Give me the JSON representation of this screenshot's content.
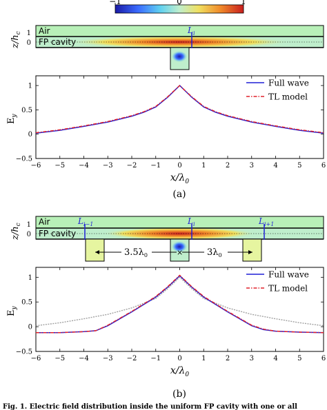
{
  "colorbar": {
    "ticks": [
      "−1",
      "0",
      "1"
    ],
    "colors": [
      "#1a1aa6",
      "#3b6cff",
      "#5fd0f0",
      "#bfeecc",
      "#f0e060",
      "#f08a2a",
      "#c81e1e"
    ]
  },
  "panel_a": {
    "geometry_labels": {
      "air": "Air",
      "cavity": "FP cavity",
      "line_label": "L",
      "line_sub": "i",
      "ylabel": "z/h",
      "ylabel_sub": "c",
      "ytick_top": "1",
      "ytick_mid": "0"
    },
    "caption": "(a)"
  },
  "panel_b": {
    "geometry_labels": {
      "air": "Air",
      "cavity": "FP cavity",
      "line_left": "L",
      "line_left_sub": "i−1",
      "line_mid": "L",
      "line_mid_sub": "i",
      "line_right": "L",
      "line_right_sub": "i+1",
      "spacing_left": "3.5λ",
      "spacing_right": "3λ",
      "spacing_sub": "0",
      "ylabel": "z/h",
      "ylabel_sub": "c",
      "ytick_top": "1",
      "ytick_mid": "0"
    },
    "caption": "(b)"
  },
  "figure_caption_fragment": "Fig. 1.  Electric field distribution inside the uniform FP cavity with one or all",
  "chart_data": [
    {
      "type": "line",
      "panel": "a",
      "xlabel": "x/λ0",
      "ylabel": "Ey",
      "xlim": [
        -6,
        6
      ],
      "ylim": [
        -0.5,
        1.2
      ],
      "xticks": [
        -6,
        -5,
        -4,
        -3,
        -2,
        -1,
        0,
        1,
        2,
        3,
        4,
        5,
        6
      ],
      "yticks": [
        -0.5,
        0,
        0.5,
        1
      ],
      "grid": false,
      "legend_position": "top-right",
      "series": [
        {
          "name": "Full wave",
          "color": "#1f1fd6",
          "style": "solid",
          "x": [
            -6,
            -5,
            -4,
            -3,
            -2,
            -1.5,
            -1,
            -0.5,
            0,
            0.5,
            1,
            1.5,
            2,
            3,
            4,
            5,
            6
          ],
          "y": [
            0.02,
            0.08,
            0.16,
            0.25,
            0.37,
            0.45,
            0.56,
            0.76,
            1.0,
            0.76,
            0.56,
            0.45,
            0.37,
            0.25,
            0.16,
            0.08,
            0.02
          ]
        },
        {
          "name": "TL model",
          "color": "#e0202a",
          "style": "dashdot",
          "x": [
            -6,
            -5,
            -4,
            -3,
            -2,
            -1.5,
            -1,
            -0.5,
            0,
            0.5,
            1,
            1.5,
            2,
            3,
            4,
            5,
            6
          ],
          "y": [
            0.03,
            0.09,
            0.17,
            0.26,
            0.38,
            0.46,
            0.57,
            0.77,
            1.0,
            0.77,
            0.57,
            0.46,
            0.38,
            0.26,
            0.17,
            0.09,
            0.03
          ]
        }
      ]
    },
    {
      "type": "line",
      "panel": "b",
      "xlabel": "x/λ0",
      "ylabel": "Ey",
      "xlim": [
        -6,
        6
      ],
      "ylim": [
        -0.5,
        1.2
      ],
      "xticks": [
        -6,
        -5,
        -4,
        -3,
        -2,
        -1,
        0,
        1,
        2,
        3,
        4,
        5,
        6
      ],
      "yticks": [
        -0.5,
        0,
        0.5,
        1
      ],
      "grid": false,
      "legend_position": "top-right",
      "series": [
        {
          "name": "Full wave",
          "color": "#1f1fd6",
          "style": "solid",
          "x": [
            -6,
            -5,
            -4,
            -3.5,
            -3,
            -2,
            -1,
            -0.5,
            0,
            0.5,
            1,
            2,
            3,
            3.5,
            4,
            5,
            6
          ],
          "y": [
            -0.12,
            -0.12,
            -0.1,
            -0.08,
            0.02,
            0.3,
            0.6,
            0.8,
            1.03,
            0.8,
            0.6,
            0.3,
            0.02,
            -0.06,
            -0.09,
            -0.11,
            -0.12
          ]
        },
        {
          "name": "TL model",
          "color": "#e0202a",
          "style": "dashdot",
          "x": [
            -6,
            -5,
            -4,
            -3.5,
            -3,
            -2,
            -1,
            -0.5,
            0,
            0.5,
            1,
            2,
            3,
            3.5,
            4,
            5,
            6
          ],
          "y": [
            -0.12,
            -0.12,
            -0.1,
            -0.08,
            0.03,
            0.31,
            0.61,
            0.81,
            1.04,
            0.81,
            0.61,
            0.31,
            0.03,
            -0.05,
            -0.09,
            -0.11,
            -0.12
          ]
        },
        {
          "name": "",
          "color": "#a0a0a0",
          "style": "dotted",
          "x": [
            -6,
            -5,
            -4,
            -3,
            -2,
            -1,
            -0.5,
            0,
            0.5,
            1,
            2,
            3,
            4,
            5,
            6
          ],
          "y": [
            0.02,
            0.08,
            0.16,
            0.25,
            0.38,
            0.57,
            0.77,
            1.0,
            0.77,
            0.57,
            0.38,
            0.25,
            0.16,
            0.08,
            0.02
          ]
        }
      ]
    }
  ]
}
